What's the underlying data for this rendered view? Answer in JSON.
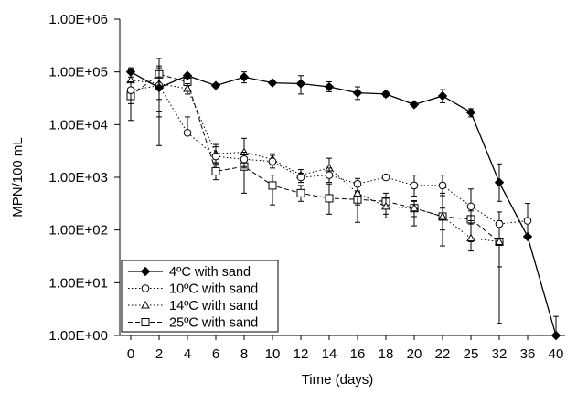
{
  "chart_data": {
    "type": "line",
    "xlabel": "Time (days)",
    "ylabel": "MPN/100 mL",
    "yscale": "log",
    "ylim": [
      1,
      1000000
    ],
    "y_tick_labels": [
      "1.00E+00",
      "1.00E+01",
      "1.00E+02",
      "1.00E+03",
      "1.00E+04",
      "1.00E+05",
      "1.00E+06"
    ],
    "y_tick_values": [
      1,
      10,
      100,
      1000,
      10000,
      100000,
      1000000
    ],
    "categories": [
      "0",
      "2",
      "4",
      "6",
      "8",
      "10",
      "12",
      "14",
      "16",
      "18",
      "20",
      "22",
      "25",
      "32",
      "36",
      "40"
    ],
    "grid": false,
    "legend_position": "bottom-left",
    "series": [
      {
        "name": "4ºC with sand",
        "marker": "filled-diamond",
        "line": "solid",
        "values": [
          100000,
          50000,
          85000,
          55000,
          80000,
          62000,
          60000,
          52000,
          40000,
          38000,
          24000,
          35000,
          17000,
          800,
          75,
          1
        ],
        "error_high": [
          120000,
          80000,
          92000,
          58000,
          100000,
          64000,
          85000,
          65000,
          52000,
          42000,
          26000,
          46000,
          20000,
          1800,
          null,
          2.3
        ],
        "error_low": [
          80000,
          18000,
          78000,
          52000,
          62000,
          60000,
          38000,
          42000,
          30000,
          34000,
          22000,
          26000,
          14000,
          350,
          null,
          null
        ]
      },
      {
        "name": "10ºC with sand",
        "marker": "open-circle",
        "line": "dotted",
        "values": [
          45000,
          55000,
          7000,
          2500,
          2200,
          2000,
          1000,
          1100,
          750,
          1000,
          700,
          700,
          280,
          130,
          150,
          null
        ],
        "error_high": [
          65000,
          180000,
          14000,
          3800,
          3000,
          2600,
          1200,
          1500,
          950,
          null,
          1100,
          1100,
          600,
          220,
          320,
          null
        ],
        "error_low": [
          25000,
          14000,
          null,
          1700,
          1500,
          1500,
          800,
          800,
          550,
          null,
          440,
          450,
          130,
          70,
          70,
          null
        ]
      },
      {
        "name": "14ºC with sand",
        "marker": "open-triangle",
        "line": "dotted",
        "values": [
          70000,
          60000,
          48000,
          2800,
          3000,
          2200,
          1100,
          1500,
          500,
          280,
          260,
          180,
          70,
          60,
          null,
          null
        ],
        "error_high": [
          110000,
          120000,
          60000,
          4200,
          5500,
          2800,
          1400,
          2300,
          800,
          400,
          360,
          500,
          150,
          150,
          null,
          null
        ],
        "error_low": [
          45000,
          30000,
          38000,
          1800,
          1600,
          1700,
          800,
          1000,
          300,
          200,
          180,
          100,
          40,
          20,
          null,
          null
        ]
      },
      {
        "name": "25ºC with sand",
        "marker": "open-square",
        "line": "dashed",
        "values": [
          35000,
          90000,
          65000,
          1300,
          1600,
          700,
          500,
          400,
          380,
          350,
          260,
          180,
          160,
          60,
          null,
          null
        ],
        "error_high": [
          50000,
          130000,
          90000,
          1900,
          3000,
          1100,
          700,
          750,
          520,
          500,
          350,
          260,
          230,
          130,
          null,
          null
        ],
        "error_low": [
          12000,
          4000,
          45000,
          900,
          500,
          300,
          350,
          200,
          140,
          170,
          120,
          50,
          60,
          1.7,
          null,
          null
        ]
      }
    ]
  }
}
